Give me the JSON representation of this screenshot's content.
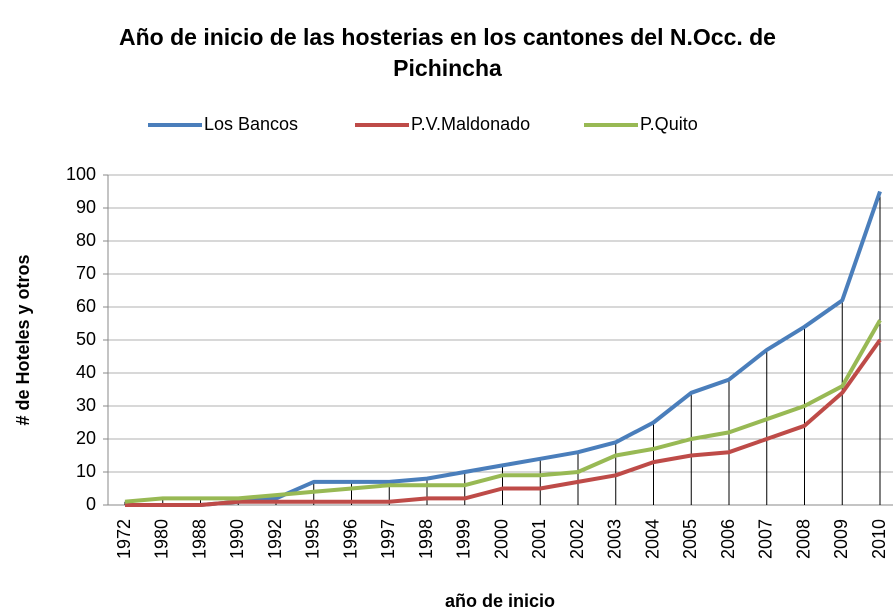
{
  "chart_data": {
    "type": "line",
    "title": "Año de inicio de las hosterias en los cantones del N.Occ. de Pichincha",
    "x_label": "año de inicio",
    "y_label": "# de Hoteles y otros",
    "categories": [
      "1972",
      "1980",
      "1988",
      "1990",
      "1992",
      "1995",
      "1996",
      "1997",
      "1998",
      "1999",
      "2000",
      "2001",
      "2002",
      "2003",
      "2004",
      "2005",
      "2006",
      "2007",
      "2008",
      "2009",
      "2010"
    ],
    "series": [
      {
        "name": "Los Bancos",
        "color": "#4a7ebb",
        "values": [
          0,
          0,
          0,
          1,
          2,
          7,
          7,
          7,
          8,
          10,
          12,
          14,
          16,
          19,
          25,
          34,
          38,
          47,
          54,
          62,
          95
        ]
      },
      {
        "name": "P.V.Maldonado",
        "color": "#be4b48",
        "values": [
          0,
          0,
          0,
          1,
          1,
          1,
          1,
          1,
          2,
          2,
          5,
          5,
          7,
          9,
          13,
          15,
          16,
          20,
          24,
          34,
          50
        ]
      },
      {
        "name": "P.Quito",
        "color": "#98b954",
        "values": [
          1,
          2,
          2,
          2,
          3,
          4,
          5,
          6,
          6,
          6,
          9,
          9,
          10,
          15,
          17,
          20,
          22,
          26,
          30,
          36,
          56
        ]
      }
    ],
    "ylim": [
      0,
      100
    ],
    "yticks": [
      0,
      10,
      20,
      30,
      40,
      50,
      60,
      70,
      80,
      90,
      100
    ],
    "grid": true,
    "legend": "top",
    "drop_lines": true
  }
}
